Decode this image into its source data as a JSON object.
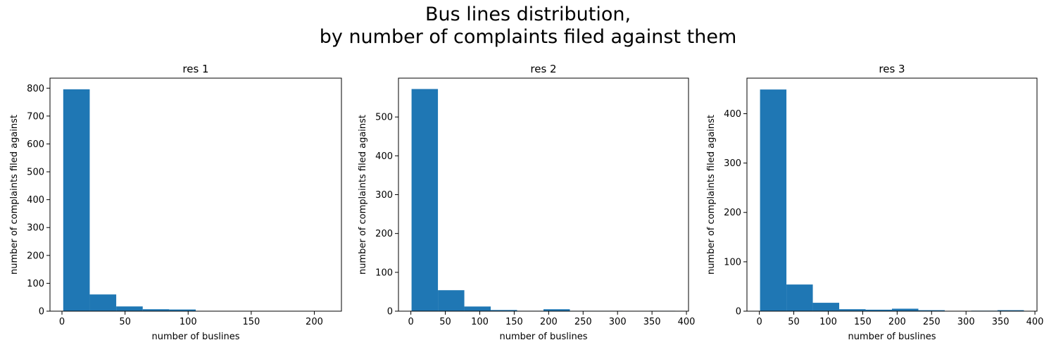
{
  "figure": {
    "title_line1": "Bus lines distribution,",
    "title_line2": "by number of complaints filed against them"
  },
  "colors": {
    "bar": "#1f77b4",
    "axis": "#000000"
  },
  "chart_data": [
    {
      "type": "bar",
      "title": "res 1",
      "xlabel": "number of buslines",
      "ylabel": "number of complaints filed against",
      "bin_edges": [
        1,
        22,
        43,
        64,
        85,
        106,
        127,
        148,
        169,
        190,
        211
      ],
      "values": [
        796,
        60,
        17,
        7,
        6,
        0,
        1,
        1,
        1,
        1
      ],
      "xlim": [
        -9.5,
        221.5
      ],
      "ylim": [
        0,
        836
      ],
      "xticks": [
        0,
        50,
        100,
        150,
        200
      ],
      "yticks": [
        0,
        100,
        200,
        300,
        400,
        500,
        600,
        700,
        800
      ],
      "grid": false,
      "legend": "none"
    },
    {
      "type": "bar",
      "title": "res 2",
      "xlabel": "number of buslines",
      "ylabel": "number of complaints filed against",
      "bin_edges": [
        1,
        39.3,
        77.6,
        115.9,
        154.2,
        192.5,
        230.8,
        269.1,
        307.4,
        345.7,
        384
      ],
      "values": [
        572,
        54,
        12,
        3,
        1,
        5,
        1,
        1,
        0,
        1
      ],
      "xlim": [
        -18,
        403
      ],
      "ylim": [
        0,
        600
      ],
      "xticks": [
        0,
        50,
        100,
        150,
        200,
        250,
        300,
        350,
        400
      ],
      "yticks": [
        0,
        100,
        200,
        300,
        400,
        500
      ],
      "grid": false,
      "legend": "none"
    },
    {
      "type": "bar",
      "title": "res 3",
      "xlabel": "number of buslines",
      "ylabel": "number of complaints filed against",
      "bin_edges": [
        1,
        39.3,
        77.6,
        115.9,
        154.2,
        192.5,
        230.8,
        269.1,
        307.4,
        345.7,
        384
      ],
      "values": [
        449,
        54,
        17,
        4,
        3,
        5,
        2,
        0,
        1,
        2
      ],
      "xlim": [
        -18,
        403
      ],
      "ylim": [
        0,
        472
      ],
      "xticks": [
        0,
        50,
        100,
        150,
        200,
        250,
        300,
        350,
        400
      ],
      "yticks": [
        0,
        100,
        200,
        300,
        400
      ],
      "grid": false,
      "legend": "none"
    }
  ]
}
